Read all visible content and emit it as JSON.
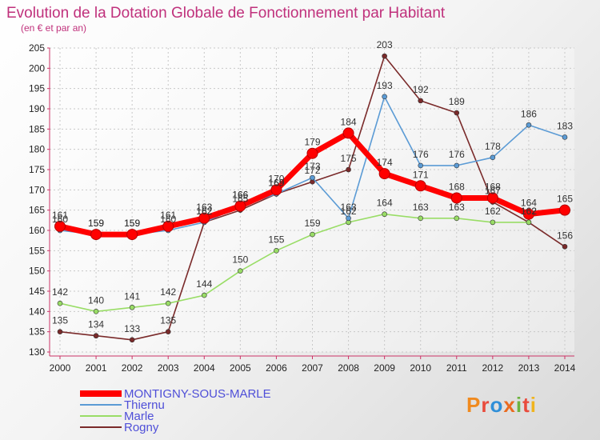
{
  "chart_data": {
    "type": "line",
    "title": "Evolution de la Dotation Globale de Fonctionnement par Habitant",
    "subtitle": "(en € et par an)",
    "x": [
      "2000",
      "2001",
      "2002",
      "2003",
      "2004",
      "2005",
      "2006",
      "2007",
      "2008",
      "2009",
      "2010",
      "2011",
      "2012",
      "2013",
      "2014"
    ],
    "ylim": [
      130,
      205
    ],
    "yticks": [
      130,
      135,
      140,
      145,
      150,
      155,
      160,
      165,
      170,
      175,
      180,
      185,
      190,
      195,
      200,
      205
    ],
    "grid": true,
    "legend_position": "bottom-left",
    "series": [
      {
        "name": "MONTIGNY-SOUS-MARLE",
        "color": "#ff0000",
        "values": [
          161,
          159,
          159,
          161,
          163,
          166,
          170,
          179,
          184,
          174,
          171,
          168,
          168,
          164,
          165
        ]
      },
      {
        "name": "Thiernu",
        "color": "#5b9bd5",
        "values": [
          160,
          159,
          159,
          160,
          162,
          166,
          169,
          173,
          163,
          193,
          176,
          176,
          178,
          186,
          183
        ]
      },
      {
        "name": "Marle",
        "color": "#99dd66",
        "values": [
          142,
          140,
          141,
          142,
          144,
          150,
          155,
          159,
          162,
          164,
          163,
          163,
          162,
          162,
          null
        ]
      },
      {
        "name": "Rogny",
        "color": "#7a2a2a",
        "values": [
          135,
          134,
          133,
          135,
          162,
          165,
          169,
          172,
          175,
          203,
          192,
          189,
          167,
          162,
          156
        ]
      }
    ]
  },
  "logo": {
    "text": "Proxiti"
  }
}
